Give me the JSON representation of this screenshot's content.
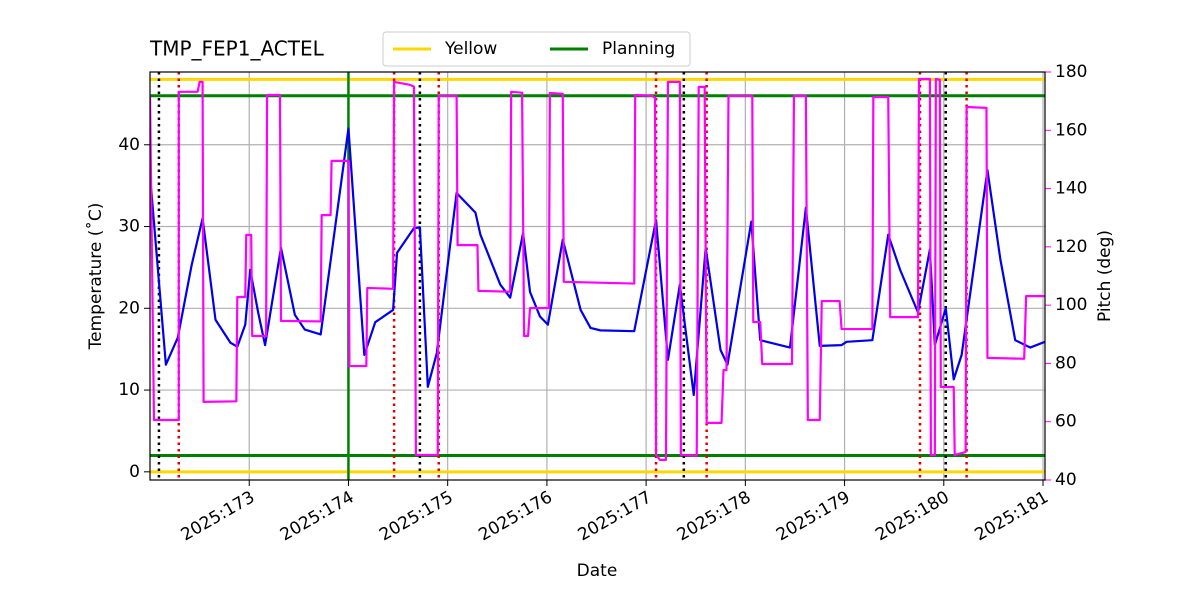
{
  "chart_data": {
    "type": "line",
    "title": "TMP_FEP1_ACTEL",
    "xlabel": "Date",
    "ylabel": "Temperature (˚C)",
    "y2label": "Pitch (deg)",
    "xlim": [
      172.0,
      181.02
    ],
    "ylim": [
      -1.0,
      48.9
    ],
    "y2lim": [
      40,
      180
    ],
    "xticks": [
      {
        "value": 173,
        "label": "2025:173"
      },
      {
        "value": 174,
        "label": "2025:174"
      },
      {
        "value": 175,
        "label": "2025:175"
      },
      {
        "value": 176,
        "label": "2025:176"
      },
      {
        "value": 177,
        "label": "2025:177"
      },
      {
        "value": 178,
        "label": "2025:178"
      },
      {
        "value": 179,
        "label": "2025:179"
      },
      {
        "value": 180,
        "label": "2025:180"
      },
      {
        "value": 181,
        "label": "2025:181"
      }
    ],
    "yticks": [
      0,
      10,
      20,
      30,
      40
    ],
    "y2ticks": [
      40,
      60,
      80,
      100,
      120,
      140,
      160,
      180
    ],
    "grid": true,
    "y2color": "#ff00ff",
    "limit_lines": [
      {
        "name": "Yellow",
        "color": "#ffd700",
        "values": [
          0,
          48
        ]
      },
      {
        "name": "Planning",
        "color": "#008000",
        "values": [
          2,
          46
        ]
      }
    ],
    "vlines": [
      {
        "color": "#000000",
        "x": [
          172.09,
          174.72,
          177.38,
          180.02
        ]
      },
      {
        "color": "#e00000",
        "x": [
          172.29,
          174.46,
          174.91,
          177.1,
          177.61,
          179.76,
          180.23
        ]
      }
    ],
    "vline_solid": {
      "color": "#008000",
      "x": [
        174.0
      ]
    },
    "series": [
      {
        "color": "#0000ee",
        "x": [
          172.0,
          172.16,
          172.28,
          172.42,
          172.53,
          172.66,
          172.81,
          172.88,
          172.96,
          173.01,
          173.09,
          173.16,
          173.32,
          173.46,
          173.56,
          173.72,
          174.0,
          174.16,
          174.27,
          174.45,
          174.49,
          174.66,
          174.72,
          174.8,
          174.89,
          175.09,
          175.28,
          175.33,
          175.53,
          175.63,
          175.76,
          175.83,
          175.93,
          176.01,
          176.16,
          176.34,
          176.44,
          176.54,
          176.88,
          177.1,
          177.22,
          177.34,
          177.48,
          177.6,
          177.75,
          177.82,
          178.06,
          178.15,
          178.45,
          178.61,
          178.75,
          178.97,
          179.02,
          179.28,
          179.44,
          179.56,
          179.74,
          179.86,
          179.91,
          180.02,
          180.1,
          180.18,
          180.44,
          180.57,
          180.72,
          180.87,
          181.02
        ],
        "values": [
          36.3,
          13.1,
          16.4,
          25.3,
          31.0,
          18.6,
          15.8,
          15.3,
          18.0,
          24.7,
          19.5,
          15.5,
          27.4,
          19.2,
          17.4,
          16.8,
          42.0,
          14.3,
          18.3,
          19.8,
          26.8,
          29.8,
          29.9,
          10.4,
          14.5,
          34.1,
          31.7,
          29.0,
          22.9,
          21.3,
          29.2,
          22.0,
          19.0,
          18.0,
          28.4,
          19.8,
          17.6,
          17.3,
          17.2,
          30.8,
          13.7,
          22.9,
          9.4,
          27.4,
          14.9,
          13.1,
          30.6,
          16.1,
          15.2,
          32.3,
          15.4,
          15.5,
          15.9,
          16.1,
          29.0,
          24.7,
          19.5,
          27.2,
          15.5,
          20.0,
          11.3,
          14.3,
          36.9,
          26.0,
          16.1,
          15.2,
          15.9
        ]
      },
      {
        "color": "#ff00ff",
        "axis": "y2",
        "x": [
          172.0,
          172.04,
          172.29,
          172.29,
          172.48,
          172.5,
          172.53,
          172.54,
          172.87,
          172.88,
          172.96,
          172.97,
          173.02,
          173.03,
          173.17,
          173.18,
          173.31,
          173.32,
          173.72,
          173.73,
          173.82,
          173.83,
          174.0,
          174.01,
          174.18,
          174.19,
          174.45,
          174.46,
          174.62,
          174.66,
          174.68,
          174.9,
          174.91,
          175.09,
          175.1,
          175.3,
          175.31,
          175.63,
          175.64,
          175.75,
          175.77,
          175.81,
          175.83,
          176.02,
          176.03,
          176.16,
          176.17,
          176.88,
          176.89,
          177.06,
          177.09,
          177.1,
          177.14,
          177.2,
          177.22,
          177.34,
          177.35,
          177.51,
          177.53,
          177.59,
          177.61,
          177.76,
          177.78,
          177.81,
          177.83,
          178.07,
          178.08,
          178.15,
          178.17,
          178.47,
          178.49,
          178.61,
          178.63,
          178.75,
          178.77,
          178.95,
          178.97,
          179.28,
          179.29,
          179.44,
          179.46,
          179.74,
          179.75,
          179.86,
          179.87,
          179.91,
          179.92,
          179.96,
          179.97,
          180.1,
          180.11,
          180.22,
          180.23,
          180.43,
          180.44,
          180.81,
          180.83,
          181.02
        ],
        "values": [
          172.0,
          60.6,
          60.6,
          173.2,
          173.2,
          176.6,
          176.6,
          66.8,
          67.0,
          102.8,
          102.8,
          124.1,
          124.1,
          89.4,
          89.4,
          172.1,
          172.1,
          94.6,
          94.4,
          130.9,
          130.9,
          149.5,
          149.5,
          79.1,
          79.1,
          105.9,
          105.6,
          176.6,
          175.6,
          175.0,
          48.6,
          48.6,
          171.8,
          171.8,
          120.6,
          120.6,
          104.9,
          104.6,
          173.2,
          172.9,
          89.4,
          89.4,
          99.0,
          99.0,
          172.8,
          172.5,
          108.0,
          107.4,
          172.1,
          171.8,
          171.1,
          48.6,
          46.9,
          46.9,
          176.6,
          176.6,
          48.6,
          48.3,
          174.9,
          174.9,
          59.6,
          59.6,
          77.7,
          77.7,
          171.8,
          171.8,
          94.2,
          94.2,
          79.8,
          79.8,
          171.8,
          171.8,
          60.6,
          60.6,
          101.4,
          101.4,
          91.8,
          91.8,
          171.4,
          171.4,
          95.9,
          95.9,
          177.6,
          177.6,
          48.6,
          48.6,
          177.6,
          177.3,
          71.9,
          71.9,
          48.6,
          49.6,
          168.0,
          167.7,
          81.9,
          81.6,
          103.1,
          103.1
        ]
      }
    ]
  }
}
